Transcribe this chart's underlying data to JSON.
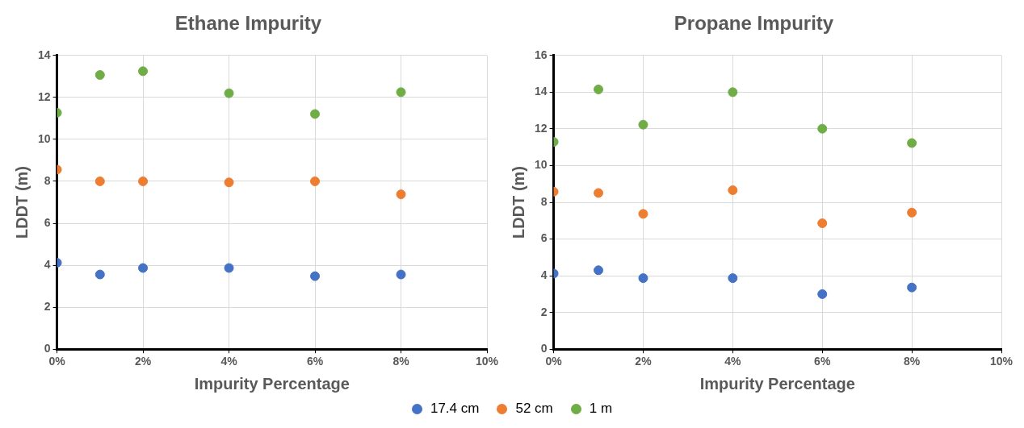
{
  "chart_data": [
    {
      "type": "scatter",
      "title": "Ethane Impurity",
      "xlabel": "Impurity Percentage",
      "ylabel": "LDDT (m)",
      "x": [
        0,
        1,
        2,
        4,
        6,
        8
      ],
      "series": [
        {
          "name": "17.4 cm",
          "color": "#4472c4",
          "values": [
            4.12,
            3.56,
            3.87,
            3.87,
            3.48,
            3.56
          ]
        },
        {
          "name": "52 cm",
          "color": "#ed7d31",
          "values": [
            8.56,
            8.0,
            8.0,
            7.95,
            8.0,
            7.38
          ]
        },
        {
          "name": "1 m",
          "color": "#70ad47",
          "values": [
            11.27,
            13.07,
            13.25,
            12.2,
            11.21,
            12.25
          ]
        }
      ],
      "xlim": [
        0,
        10
      ],
      "xticks": [
        {
          "value": 0,
          "label": "0%"
        },
        {
          "value": 2,
          "label": "2%"
        },
        {
          "value": 4,
          "label": "4%"
        },
        {
          "value": 6,
          "label": "6%"
        },
        {
          "value": 8,
          "label": "8%"
        },
        {
          "value": 10,
          "label": "10%"
        }
      ],
      "ylim": [
        0,
        14
      ],
      "yticks": [
        0,
        2,
        4,
        6,
        8,
        10,
        12,
        14
      ],
      "grid": true,
      "marker": "circle",
      "legend": "bottom"
    },
    {
      "type": "scatter",
      "title": "Propane Impurity",
      "xlabel": "Impurity Percentage",
      "ylabel": "LDDT (m)",
      "x": [
        0,
        1,
        2,
        4,
        6,
        8
      ],
      "series": [
        {
          "color": "#4472c4",
          "values": [
            4.12,
            4.3,
            3.87,
            3.87,
            3.0,
            3.36
          ]
        },
        {
          "color": "#ed7d31",
          "values": [
            8.58,
            8.51,
            7.37,
            8.66,
            6.86,
            7.44
          ]
        },
        {
          "color": "#70ad47",
          "values": [
            11.29,
            14.15,
            12.23,
            14.0,
            12.01,
            11.23
          ]
        }
      ],
      "xlim": [
        0,
        10
      ],
      "xticks": [
        {
          "value": 0,
          "label": "0%"
        },
        {
          "value": 2,
          "label": "2%"
        },
        {
          "value": 4,
          "label": "4%"
        },
        {
          "value": 6,
          "label": "6%"
        },
        {
          "value": 8,
          "label": "8%"
        },
        {
          "value": 10,
          "label": "10%"
        }
      ],
      "ylim": [
        0,
        16
      ],
      "yticks": [
        0,
        2,
        4,
        6,
        8,
        10,
        12,
        14,
        16
      ],
      "grid": true,
      "marker": "circle"
    }
  ]
}
